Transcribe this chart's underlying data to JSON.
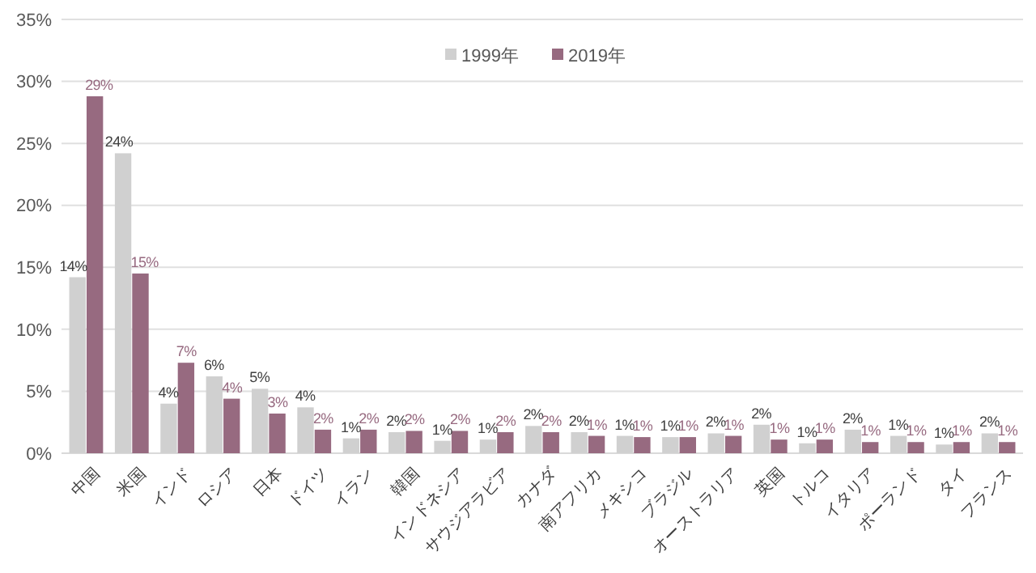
{
  "chart_data": {
    "type": "bar",
    "categories": [
      "中国",
      "米国",
      "インド",
      "ロシア",
      "日本",
      "ドイツ",
      "イラン",
      "韓国",
      "インドネシア",
      "サウジアラビア",
      "カナダ",
      "南アフリカ",
      "メキシコ",
      "ブラジル",
      "オーストラリア",
      "英国",
      "トルコ",
      "イタリア",
      "ポーランド",
      "タイ",
      "フランス"
    ],
    "series": [
      {
        "name": "1999年",
        "color": "#d0d0d0",
        "values": [
          14.2,
          24.2,
          4.0,
          6.2,
          5.2,
          3.7,
          1.2,
          1.7,
          1.0,
          1.1,
          2.2,
          1.7,
          1.4,
          1.3,
          1.6,
          2.3,
          0.8,
          1.9,
          1.4,
          0.7,
          1.6
        ],
        "value_labels": [
          "14%",
          "24%",
          "4%",
          "6%",
          "5%",
          "4%",
          "1%",
          "2%",
          "1%",
          "1%",
          "2%",
          "2%",
          "1%",
          "1%",
          "2%",
          "2%",
          "1%",
          "2%",
          "1%",
          "1%",
          "2%"
        ]
      },
      {
        "name": "2019年",
        "color": "#976a80",
        "values": [
          28.8,
          14.5,
          7.3,
          4.4,
          3.2,
          1.9,
          1.9,
          1.8,
          1.8,
          1.7,
          1.7,
          1.4,
          1.3,
          1.3,
          1.4,
          1.1,
          1.1,
          0.9,
          0.9,
          0.9,
          0.9
        ],
        "value_labels": [
          "29%",
          "15%",
          "7%",
          "4%",
          "3%",
          "2%",
          "2%",
          "2%",
          "2%",
          "2%",
          "2%",
          "1%",
          "1%",
          "1%",
          "1%",
          "1%",
          "1%",
          "1%",
          "1%",
          "1%",
          "1%"
        ]
      }
    ],
    "ylim": [
      0,
      35
    ],
    "yticks": [
      {
        "value": 0,
        "label": "0%"
      },
      {
        "value": 5,
        "label": "5%"
      },
      {
        "value": 10,
        "label": "10%"
      },
      {
        "value": 15,
        "label": "15%"
      },
      {
        "value": 20,
        "label": "20%"
      },
      {
        "value": 25,
        "label": "25%"
      },
      {
        "value": 30,
        "label": "30%"
      },
      {
        "value": 35,
        "label": "35%"
      }
    ],
    "grid": "y",
    "legend": "top"
  }
}
